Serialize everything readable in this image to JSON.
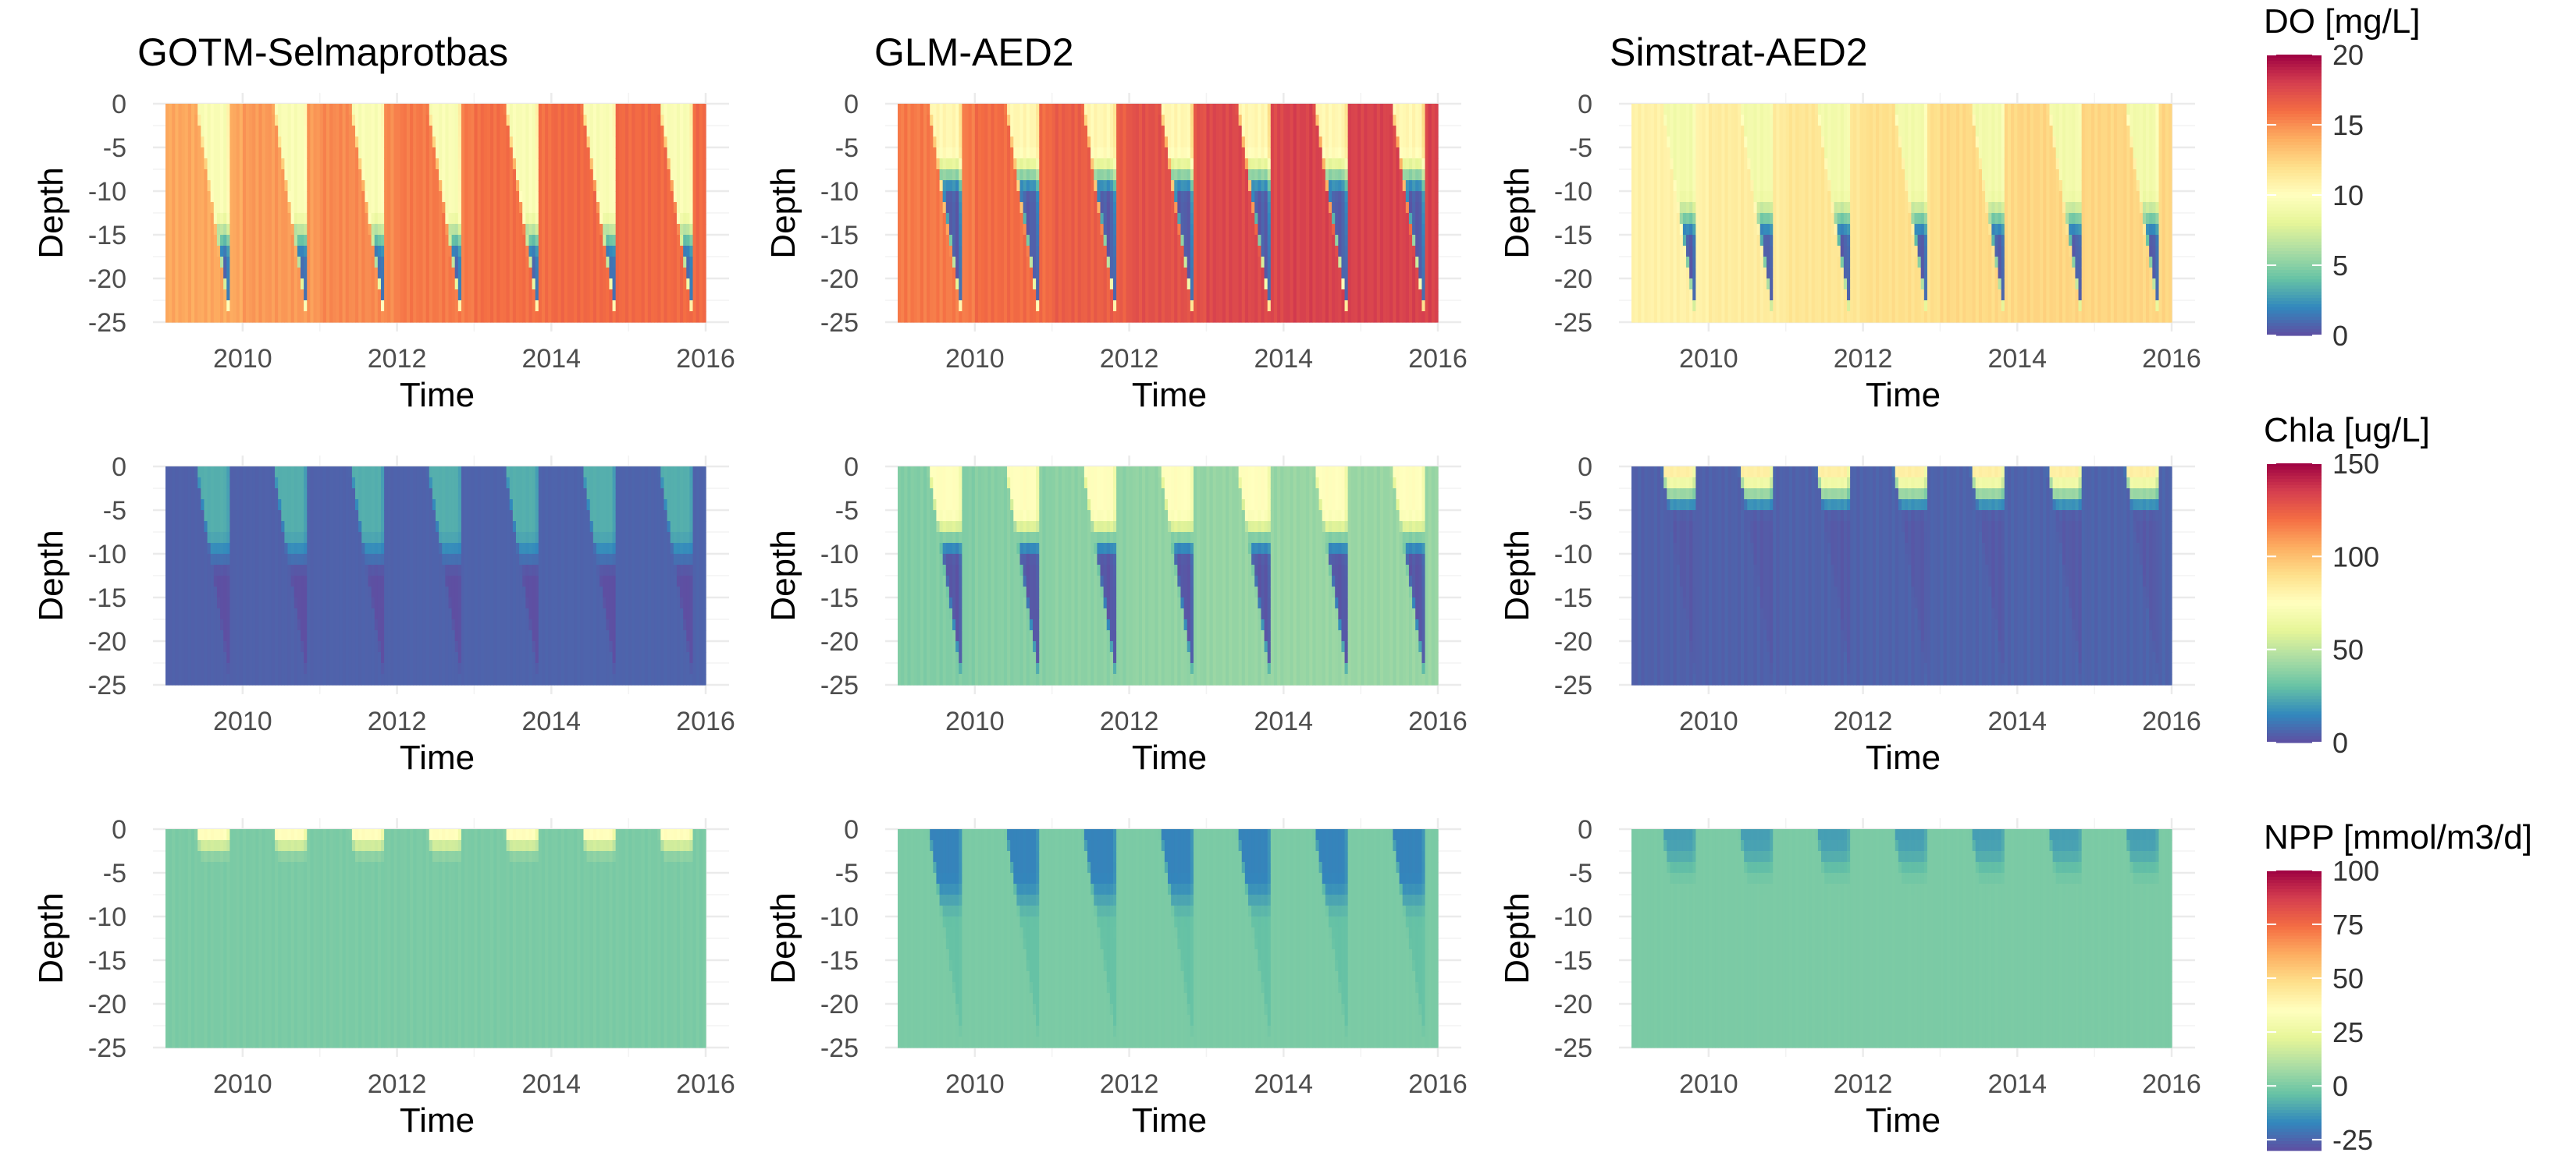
{
  "chart_data": {
    "type": "heatmap",
    "column_titles": [
      "GOTM-Selmaprotbas",
      "GLM-AED2",
      "Simstrat-AED2"
    ],
    "xlabel": "Time",
    "ylabel": "Depth",
    "x_ticks": [
      "2010",
      "2012",
      "2014",
      "2016"
    ],
    "x_tick_values": [
      2010,
      2012,
      2014,
      2016
    ],
    "xlim": [
      2009.0,
      2016.0
    ],
    "y_ticks": [
      "0",
      "-5",
      "-10",
      "-15",
      "-20",
      "-25"
    ],
    "y_tick_values": [
      0,
      -5,
      -10,
      -15,
      -20,
      -25
    ],
    "ylim": [
      -25,
      0
    ],
    "grid": true,
    "colormap": "Spectral (reversed)",
    "colormap_stops": [
      "#5e4fa2",
      "#3288bd",
      "#66c2a5",
      "#abdda4",
      "#e6f598",
      "#ffffbf",
      "#fee08b",
      "#fdae61",
      "#f46d43",
      "#d53e4f",
      "#9e0142"
    ],
    "legend_placement": "right",
    "variables": [
      {
        "key": "do",
        "legend_title": "DO [mg/L]",
        "range": [
          0,
          20
        ],
        "ticks": [
          "20",
          "15",
          "10",
          "5",
          "0"
        ],
        "tick_values": [
          20,
          15,
          10,
          5,
          0
        ]
      },
      {
        "key": "chla",
        "legend_title": "Chla [ug/L]",
        "range": [
          0,
          150
        ],
        "ticks": [
          "150",
          "100",
          "50",
          "0"
        ],
        "tick_values": [
          150,
          100,
          50,
          0
        ]
      },
      {
        "key": "npp",
        "legend_title": "NPP [mmol/m3/d]",
        "range": [
          -30,
          100
        ],
        "ticks": [
          "100",
          "75",
          "50",
          "25",
          "0",
          "-25"
        ],
        "tick_values": [
          100,
          75,
          50,
          25,
          0,
          -25
        ]
      }
    ],
    "panels": [
      [
        {
          "model": "GOTM-Selmaprotbas",
          "variable": "DO [mg/L]",
          "x_start": 2009.0,
          "x_end": 2016.0,
          "summer_surface": 9.5,
          "summer_bottom": 1.0,
          "winter": 15.0,
          "onset_depth": -15,
          "anoxia_duration_yr": 0.1
        },
        {
          "model": "GLM-AED2",
          "variable": "DO [mg/L]",
          "x_start": 2009.0,
          "x_end": 2016.0,
          "summer_surface": 10.5,
          "summer_bottom": 0.5,
          "winter": 16.5,
          "onset_depth": -8,
          "anoxia_duration_yr": 0.35
        },
        {
          "model": "Simstrat-AED2",
          "variable": "DO [mg/L]",
          "x_start": 2009.0,
          "x_end": 2016.0,
          "summer_surface": 9.0,
          "summer_bottom": 0.5,
          "winter": 11.5,
          "onset_depth": -13,
          "anoxia_duration_yr": 0.3
        }
      ],
      [
        {
          "model": "GOTM-Selmaprotbas",
          "variable": "Chla [ug/L]",
          "x_start": 2009.0,
          "x_end": 2016.0,
          "summer_surface": 25,
          "summer_bottom": 0,
          "winter": 5,
          "onset_depth": -10,
          "anoxia_duration_yr": 0.1
        },
        {
          "model": "GLM-AED2",
          "variable": "Chla [ug/L]",
          "x_start": 2009.0,
          "x_end": 2016.0,
          "summer_surface": 75,
          "summer_bottom": 2,
          "winter": 38,
          "onset_depth": -8,
          "anoxia_duration_yr": 0.35
        },
        {
          "model": "Simstrat-AED2",
          "variable": "Chla [ug/L]",
          "x_start": 2009.0,
          "x_end": 2016.0,
          "summer_surface": 85,
          "summer_bottom": 3,
          "winter": 5,
          "onset_depth": -3,
          "anoxia_duration_yr": 0.2
        }
      ],
      [
        {
          "model": "GOTM-Selmaprotbas",
          "variable": "NPP [mmol/m3/d]",
          "x_start": 2009.0,
          "x_end": 2016.0,
          "summer_surface": 60,
          "summer_bottom": 0,
          "winter": 0,
          "onset_depth": -1,
          "anoxia_duration_yr": 0.1
        },
        {
          "model": "GLM-AED2",
          "variable": "NPP [mmol/m3/d]",
          "x_start": 2009.0,
          "x_end": 2016.0,
          "summer_surface": -18,
          "summer_bottom": -4,
          "winter": 0,
          "onset_depth": -8,
          "anoxia_duration_yr": 0.15
        },
        {
          "model": "Simstrat-AED2",
          "variable": "NPP [mmol/m3/d]",
          "x_start": 2009.0,
          "x_end": 2016.0,
          "summer_surface": -12,
          "summer_bottom": 0,
          "winter": 0,
          "onset_depth": -4,
          "anoxia_duration_yr": 0.1
        }
      ]
    ]
  }
}
